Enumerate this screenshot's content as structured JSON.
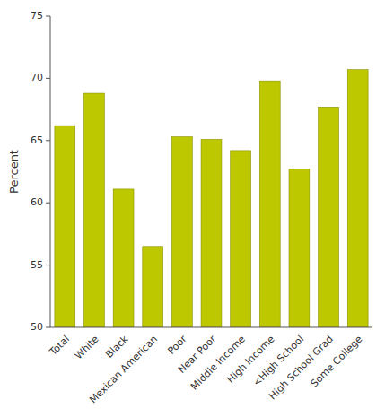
{
  "chart_data": {
    "type": "bar",
    "categories": [
      "Total",
      "White",
      "Black",
      "Mexican American",
      "Poor",
      "Near Poor",
      "Middle Income",
      "High Income",
      "<High School",
      "High School Grad",
      "Some College"
    ],
    "values": [
      66.2,
      68.8,
      61.1,
      56.5,
      65.3,
      65.1,
      64.2,
      69.8,
      62.7,
      67.7,
      70.7
    ],
    "color": "#bec800",
    "ylabel": "Percent",
    "ylim": [
      50,
      75
    ],
    "yticks": [
      50,
      55,
      60,
      65,
      70,
      75
    ],
    "grid": false
  }
}
